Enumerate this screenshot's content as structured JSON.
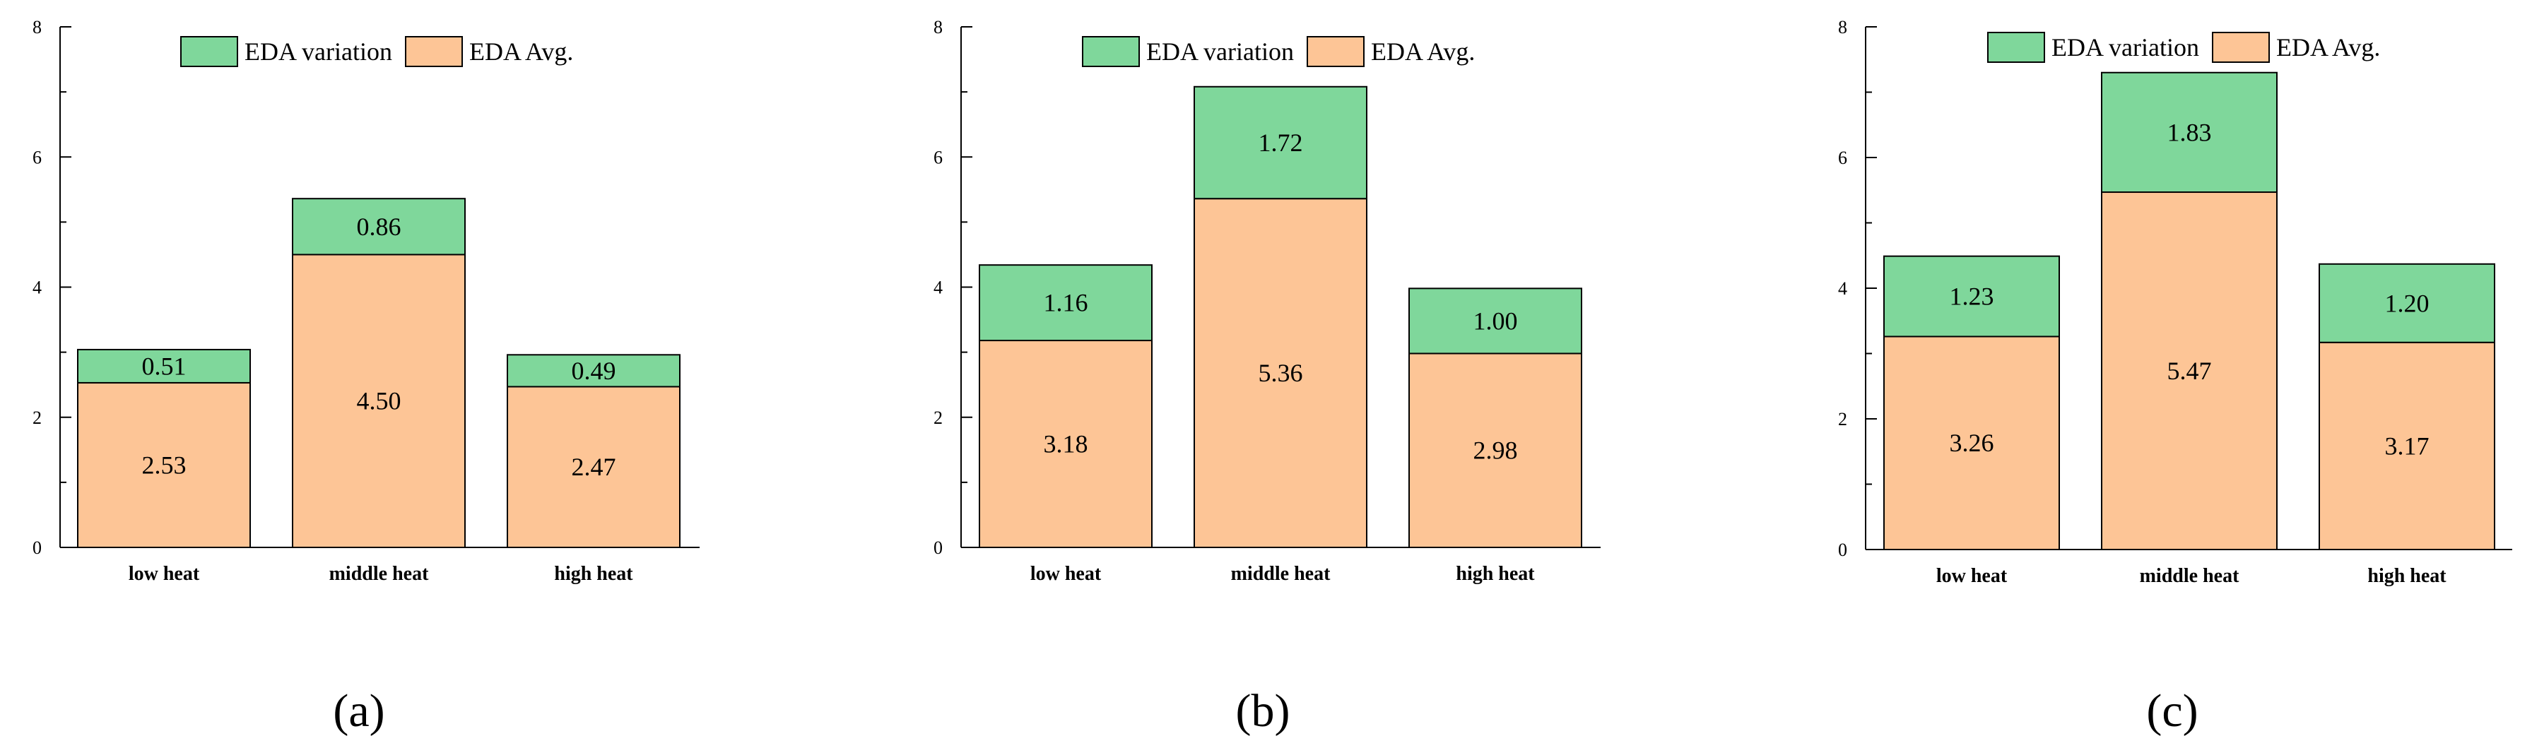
{
  "colors": {
    "variation": "#7fd79b",
    "avg": "#fdc596",
    "axis": "#000000"
  },
  "chart_data": [
    {
      "type": "bar",
      "stacked": true,
      "panel_label": "(a)",
      "categories": [
        "low heat",
        "middle heat",
        "high heat"
      ],
      "series": [
        {
          "name": "EDA Avg.",
          "values": [
            2.53,
            4.5,
            2.47
          ],
          "labels": [
            "2.53",
            "4.50",
            "2.47"
          ]
        },
        {
          "name": "EDA variation",
          "values": [
            0.51,
            0.86,
            0.49
          ],
          "labels": [
            "0.51",
            "0.86",
            "0.49"
          ]
        }
      ],
      "legend": [
        "EDA variation",
        "EDA Avg."
      ],
      "ylim": [
        0,
        8
      ],
      "yticks": [
        "0",
        "2",
        "4",
        "6",
        "8"
      ]
    },
    {
      "type": "bar",
      "stacked": true,
      "panel_label": "(b)",
      "categories": [
        "low heat",
        "middle heat",
        "high heat"
      ],
      "series": [
        {
          "name": "EDA Avg.",
          "values": [
            3.18,
            5.36,
            2.98
          ],
          "labels": [
            "3.18",
            "5.36",
            "2.98"
          ]
        },
        {
          "name": "EDA variation",
          "values": [
            1.16,
            1.72,
            1.0
          ],
          "labels": [
            "1.16",
            "1.72",
            "1.00"
          ]
        }
      ],
      "legend": [
        "EDA variation",
        "EDA Avg."
      ],
      "ylim": [
        0,
        8
      ],
      "yticks": [
        "0",
        "2",
        "4",
        "6",
        "8"
      ]
    },
    {
      "type": "bar",
      "stacked": true,
      "panel_label": "(c)",
      "categories": [
        "low heat",
        "middle heat",
        "high heat"
      ],
      "series": [
        {
          "name": "EDA Avg.",
          "values": [
            3.26,
            5.47,
            3.17
          ],
          "labels": [
            "3.26",
            "5.47",
            "3.17"
          ]
        },
        {
          "name": "EDA variation",
          "values": [
            1.23,
            1.83,
            1.2
          ],
          "labels": [
            "1.23",
            "1.83",
            "1.20"
          ]
        }
      ],
      "legend": [
        "EDA variation",
        "EDA Avg."
      ],
      "ylim": [
        0,
        8
      ],
      "yticks": [
        "0",
        "2",
        "4",
        "6",
        "8"
      ]
    }
  ]
}
